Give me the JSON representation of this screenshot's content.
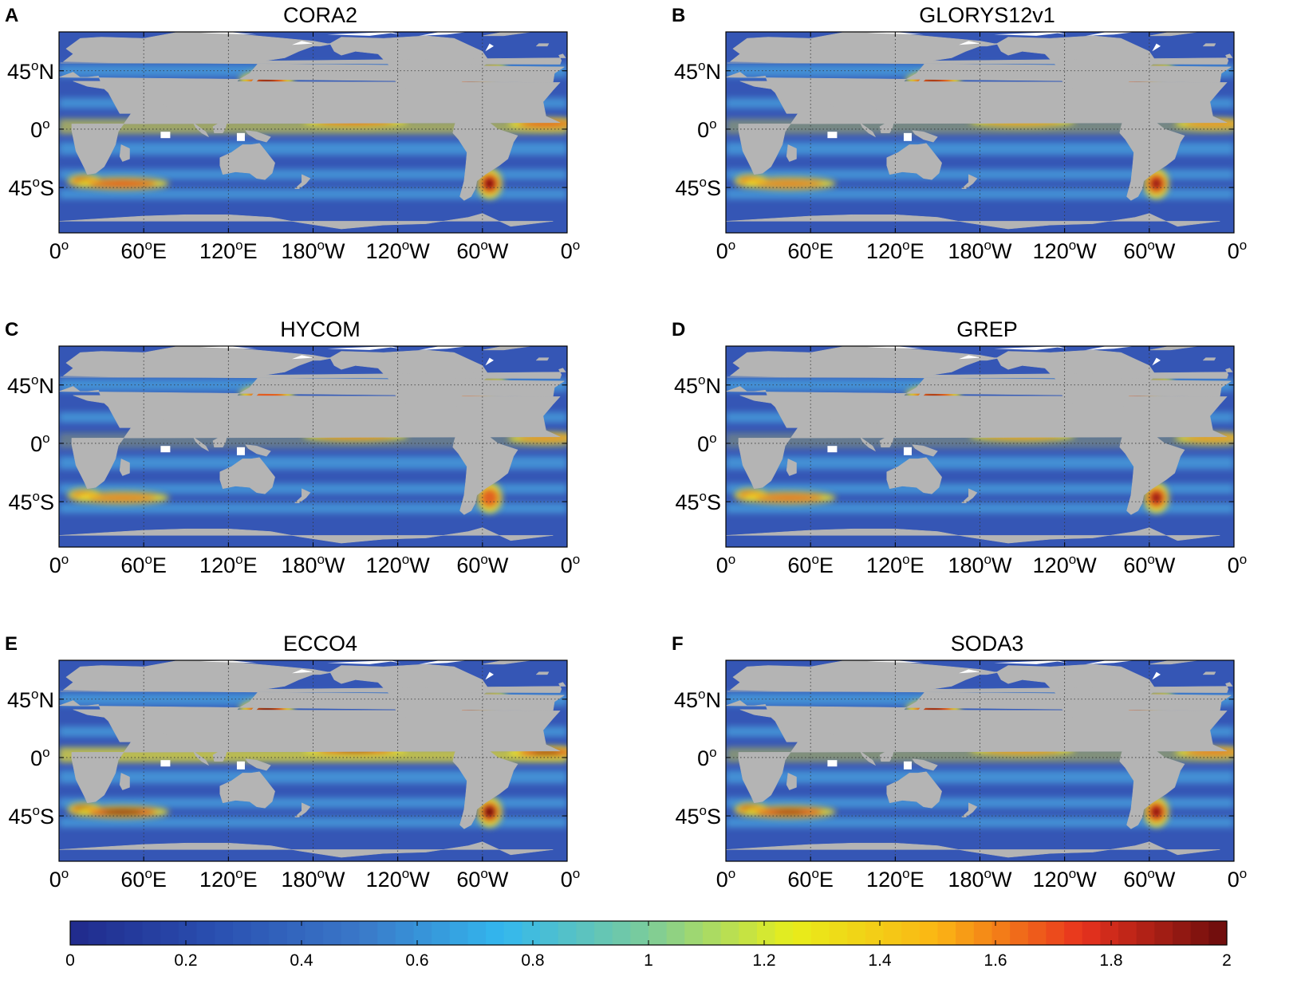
{
  "panels": [
    {
      "letter": "A",
      "title": "CORA2"
    },
    {
      "letter": "B",
      "title": "GLORYS12v1"
    },
    {
      "letter": "C",
      "title": "HYCOM"
    },
    {
      "letter": "D",
      "title": "GREP"
    },
    {
      "letter": "E",
      "title": "ECCO4"
    },
    {
      "letter": "F",
      "title": "SODA3"
    }
  ],
  "axes": {
    "lon_ticks": [
      {
        "base": "0",
        "sup": "o",
        "hemi": ""
      },
      {
        "base": "60",
        "sup": "o",
        "hemi": "E"
      },
      {
        "base": "120",
        "sup": "o",
        "hemi": "E"
      },
      {
        "base": "180",
        "sup": "o",
        "hemi": "W"
      },
      {
        "base": "120",
        "sup": "o",
        "hemi": "W"
      },
      {
        "base": "60",
        "sup": "o",
        "hemi": "W"
      },
      {
        "base": "0",
        "sup": "o",
        "hemi": ""
      }
    ],
    "lat_ticks": [
      {
        "base": "45",
        "sup": "o",
        "hemi": "N"
      },
      {
        "base": "0",
        "sup": "o",
        "hemi": ""
      },
      {
        "base": "45",
        "sup": "o",
        "hemi": "S"
      }
    ]
  },
  "colorbar": {
    "min": 0,
    "max": 2,
    "tick_labels": [
      "0",
      "0.2",
      "0.4",
      "0.6",
      "0.8",
      "1",
      "1.2",
      "1.4",
      "1.6",
      "1.8",
      "2"
    ],
    "colors": [
      "#202a8c",
      "#2a4fb0",
      "#3a78c8",
      "#33b8ee",
      "#7ccc9a",
      "#e8ee1a",
      "#fbb514",
      "#e8321e",
      "#6a0c0c"
    ]
  },
  "colors": {
    "land": "#b4b4b4",
    "ice": "#ffffff",
    "ocean_low": "#3556b5",
    "ocean_mid": "#4fc0ee",
    "high": "#f2e628",
    "hot": "#e2301c",
    "extreme": "#5a0808"
  }
}
